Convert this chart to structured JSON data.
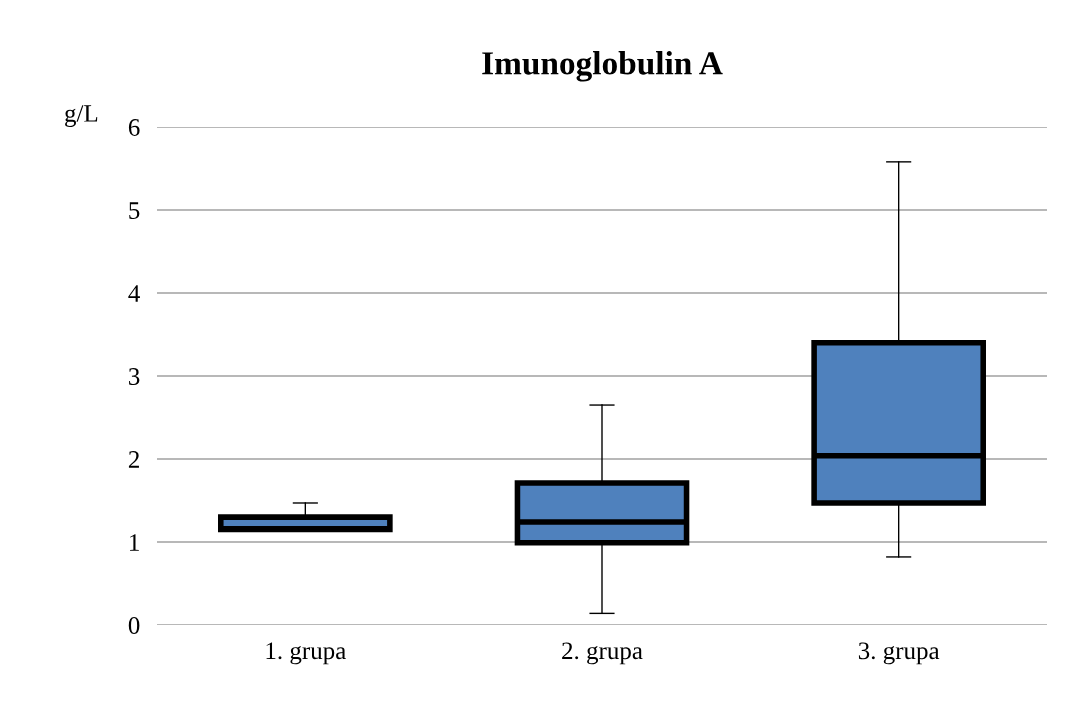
{
  "chart_data": {
    "type": "box",
    "title": "Imunoglobulin A",
    "ylabel": "g/L",
    "categories": [
      "1. grupa",
      "2. grupa",
      "3. grupa"
    ],
    "series": [
      {
        "color": "#4f81bd",
        "boxes": [
          {
            "low": 1.15,
            "q1": 1.15,
            "median": 1.16,
            "q3": 1.3,
            "high": 1.47
          },
          {
            "low": 0.14,
            "q1": 0.99,
            "median": 1.24,
            "q3": 1.71,
            "high": 2.65
          },
          {
            "low": 0.82,
            "q1": 1.47,
            "median": 2.04,
            "q3": 3.4,
            "high": 5.58
          }
        ]
      }
    ],
    "ylim": [
      0,
      6
    ],
    "yticks": [
      0,
      1,
      2,
      3,
      4,
      5,
      6
    ],
    "grid": "y",
    "legend": false
  }
}
